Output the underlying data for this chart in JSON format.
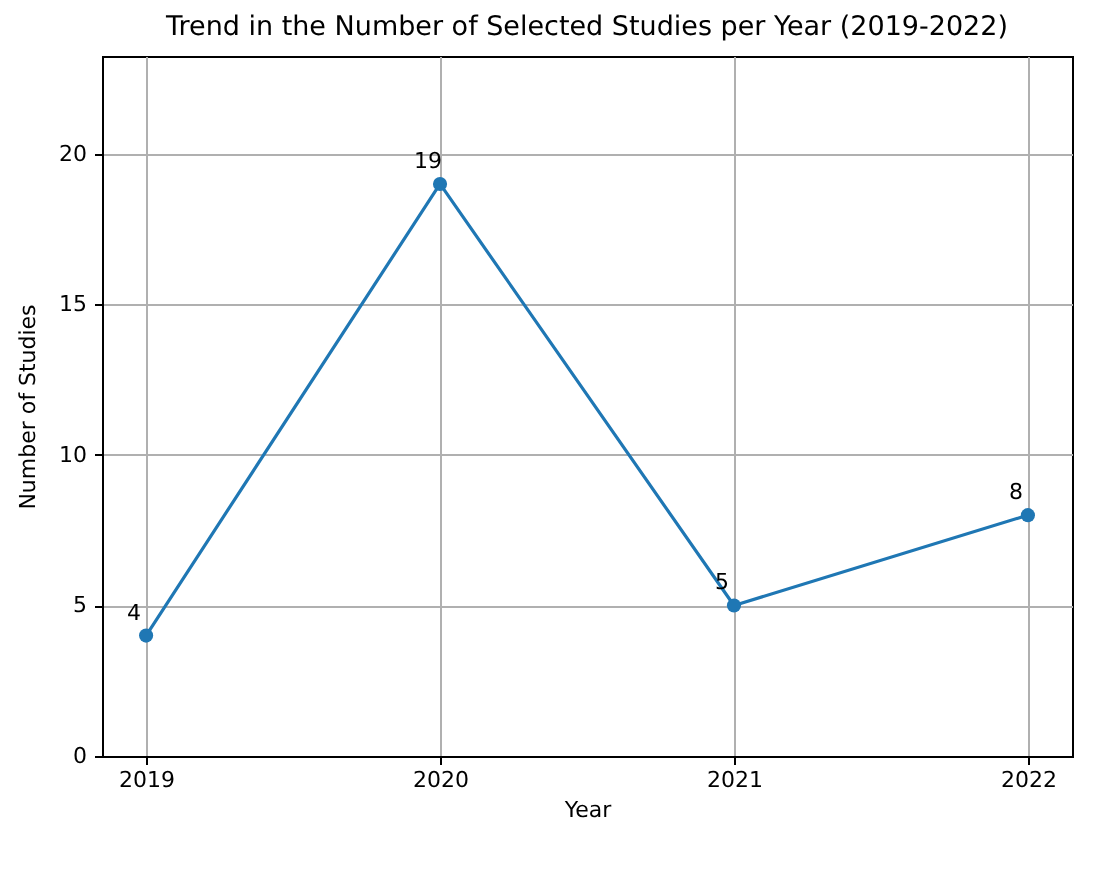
{
  "chart_data": {
    "type": "line",
    "title": "Trend in the Number of Selected Studies per Year (2019-2022)",
    "xlabel": "Year",
    "ylabel": "Number of Studies",
    "x": [
      2019,
      2020,
      2021,
      2022
    ],
    "series": [
      {
        "color": "#1f77b4",
        "values": [
          4,
          19,
          5,
          8
        ]
      }
    ],
    "xlim": [
      2018.85,
      2022.15
    ],
    "xticks": [
      2019,
      2020,
      2021,
      2022
    ],
    "ylim": [
      0,
      23.25
    ],
    "yticks": [
      0,
      5,
      10,
      15,
      20
    ],
    "grid": true,
    "marker": "circle",
    "line_style": "solid",
    "data_labels": true
  }
}
